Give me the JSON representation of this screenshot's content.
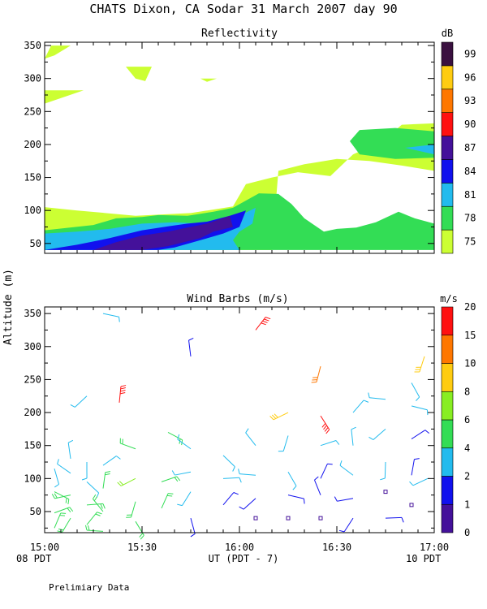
{
  "title": "CHATS Dixon, CA   Sodar  31 March 2007  day  90",
  "footer": "Prelimiary Data",
  "shared_axes": {
    "ylabel": "Altitude (m)",
    "xlabel": "UT  (PDT - 7)",
    "x_ticks": [
      "15:00",
      "15:30",
      "16:00",
      "16:30",
      "17:00"
    ],
    "x_left_note": "08 PDT",
    "x_right_note": "10 PDT"
  },
  "chart_data": [
    {
      "type": "heatmap",
      "title": "Reflectivity",
      "xlim": [
        0,
        120
      ],
      "ylim": [
        35,
        355
      ],
      "y_ticks": [
        50,
        100,
        150,
        200,
        250,
        300,
        350
      ],
      "colorbar": {
        "unit": "dB",
        "ticks": [
          "75",
          "78",
          "81",
          "84",
          "87",
          "90",
          "93",
          "96",
          "99"
        ],
        "colors": [
          "#ccff33",
          "#33dd55",
          "#22bbee",
          "#1111ee",
          "#44119a",
          "#ff1111",
          "#ff7700",
          "#ffcc11",
          "#3a1040"
        ]
      },
      "regions": [
        {
          "level": "75",
          "color": "#ccff33",
          "points": [
            [
              0,
              40
            ],
            [
              0,
              105
            ],
            [
              10,
              100
            ],
            [
              28,
              92
            ],
            [
              45,
              96
            ],
            [
              58,
              106
            ],
            [
              62,
              140
            ],
            [
              70,
              150
            ],
            [
              78,
              158
            ],
            [
              88,
              152
            ],
            [
              95,
              185
            ],
            [
              104,
              205
            ],
            [
              110,
              230
            ],
            [
              120,
              232
            ],
            [
              120,
              160
            ],
            [
              110,
              168
            ],
            [
              100,
              175
            ],
            [
              90,
              178
            ],
            [
              80,
              170
            ],
            [
              72,
              160
            ],
            [
              70,
              40
            ]
          ]
        },
        {
          "level": "75",
          "color": "#ccff33",
          "points": [
            [
              0,
              262
            ],
            [
              0,
              282
            ],
            [
              12,
              282
            ]
          ]
        },
        {
          "level": "75",
          "color": "#ccff33",
          "points": [
            [
              0,
              330
            ],
            [
              2,
              350
            ],
            [
              8,
              350
            ],
            [
              3,
              335
            ]
          ]
        },
        {
          "level": "75",
          "color": "#ccff33",
          "points": [
            [
              25,
              318
            ],
            [
              28,
              300
            ],
            [
              31,
              296
            ],
            [
              33,
              318
            ]
          ]
        },
        {
          "level": "75",
          "color": "#ccff33",
          "points": [
            [
              48,
              300
            ],
            [
              50,
              295
            ],
            [
              53,
              300
            ]
          ]
        },
        {
          "level": "78",
          "color": "#33dd55",
          "points": [
            [
              0,
              40
            ],
            [
              0,
              70
            ],
            [
              15,
              78
            ],
            [
              22,
              88
            ],
            [
              30,
              90
            ],
            [
              35,
              93
            ],
            [
              44,
              92
            ],
            [
              52,
              98
            ],
            [
              58,
              104
            ],
            [
              66,
              126
            ],
            [
              72,
              125
            ],
            [
              76,
              110
            ],
            [
              80,
              88
            ],
            [
              86,
              68
            ],
            [
              90,
              72
            ],
            [
              96,
              74
            ],
            [
              102,
              82
            ],
            [
              109,
              98
            ],
            [
              114,
              88
            ],
            [
              120,
              80
            ],
            [
              120,
              40
            ]
          ]
        },
        {
          "level": "78",
          "color": "#33dd55",
          "points": [
            [
              97,
              222
            ],
            [
              108,
              225
            ],
            [
              120,
              220
            ],
            [
              120,
              180
            ],
            [
              108,
              178
            ],
            [
              97,
              185
            ],
            [
              94,
              205
            ]
          ]
        },
        {
          "level": "81",
          "color": "#22bbee",
          "points": [
            [
              0,
              40
            ],
            [
              0,
              65
            ],
            [
              10,
              68
            ],
            [
              20,
              72
            ],
            [
              30,
              80
            ],
            [
              40,
              82
            ],
            [
              48,
              80
            ],
            [
              56,
              85
            ],
            [
              60,
              92
            ],
            [
              65,
              104
            ],
            [
              64,
              80
            ],
            [
              60,
              68
            ],
            [
              58,
              55
            ],
            [
              60,
              40
            ]
          ]
        },
        {
          "level": "81",
          "color": "#22bbee",
          "points": [
            [
              120,
              200
            ],
            [
              111,
              195
            ],
            [
              120,
              185
            ]
          ]
        },
        {
          "level": "84",
          "color": "#1111ee",
          "points": [
            [
              0,
              40
            ],
            [
              10,
              48
            ],
            [
              20,
              58
            ],
            [
              30,
              70
            ],
            [
              38,
              76
            ],
            [
              44,
              80
            ],
            [
              50,
              83
            ],
            [
              57,
              92
            ],
            [
              62,
              100
            ],
            [
              60,
              75
            ],
            [
              55,
              65
            ],
            [
              48,
              55
            ],
            [
              40,
              44
            ],
            [
              35,
              40
            ]
          ]
        },
        {
          "level": "87",
          "color": "#44119a",
          "points": [
            [
              15,
              40
            ],
            [
              22,
              52
            ],
            [
              30,
              62
            ],
            [
              38,
              68
            ],
            [
              44,
              74
            ],
            [
              50,
              80
            ],
            [
              57,
              92
            ],
            [
              58,
              75
            ],
            [
              52,
              68
            ],
            [
              48,
              58
            ],
            [
              38,
              46
            ],
            [
              30,
              40
            ]
          ]
        }
      ]
    },
    {
      "type": "scatter",
      "title": "Wind Barbs (m/s)",
      "xlim": [
        0,
        120
      ],
      "ylim": [
        18,
        360
      ],
      "y_ticks": [
        50,
        100,
        150,
        200,
        250,
        300,
        350
      ],
      "colorbar": {
        "unit": "m/s",
        "ticks": [
          "0",
          "1",
          "2",
          "4",
          "6",
          "8",
          "10",
          "15",
          "20"
        ],
        "colors": [
          "#44119a",
          "#1111ee",
          "#22bbee",
          "#33dd55",
          "#88ee22",
          "#ffcc11",
          "#ff7700",
          "#ff1111"
        ]
      },
      "barbs": [
        {
          "t": 3,
          "alt": 25,
          "speed": 4,
          "color": "#33dd55"
        },
        {
          "t": 3,
          "alt": 48,
          "speed": 4,
          "color": "#33dd55"
        },
        {
          "t": 3,
          "alt": 80,
          "speed": 4,
          "color": "#33dd55"
        },
        {
          "t": 3,
          "alt": 115,
          "speed": 3,
          "color": "#22bbee"
        },
        {
          "t": 8,
          "alt": 40,
          "speed": 4,
          "color": "#33dd55"
        },
        {
          "t": 8,
          "alt": 75,
          "speed": 5,
          "color": "#33dd55"
        },
        {
          "t": 8,
          "alt": 108,
          "speed": 3,
          "color": "#22bbee"
        },
        {
          "t": 8,
          "alt": 130,
          "speed": 3,
          "color": "#22bbee"
        },
        {
          "t": 13,
          "alt": 30,
          "speed": 4,
          "color": "#33dd55"
        },
        {
          "t": 13,
          "alt": 60,
          "speed": 4,
          "color": "#33dd55"
        },
        {
          "t": 13,
          "alt": 95,
          "speed": 3,
          "color": "#22bbee"
        },
        {
          "t": 13,
          "alt": 125,
          "speed": 3,
          "color": "#22bbee"
        },
        {
          "t": 13,
          "alt": 225,
          "speed": 3,
          "color": "#22bbee"
        },
        {
          "t": 18,
          "alt": 20,
          "speed": 4,
          "color": "#33dd55"
        },
        {
          "t": 18,
          "alt": 50,
          "speed": 5,
          "color": "#33dd55"
        },
        {
          "t": 18,
          "alt": 85,
          "speed": 4,
          "color": "#33dd55"
        },
        {
          "t": 18,
          "alt": 120,
          "speed": 3,
          "color": "#22bbee"
        },
        {
          "t": 18,
          "alt": 350,
          "speed": 3,
          "color": "#22bbee"
        },
        {
          "t": 28,
          "alt": 35,
          "speed": 5,
          "color": "#33dd55"
        },
        {
          "t": 28,
          "alt": 65,
          "speed": 5,
          "color": "#33dd55"
        },
        {
          "t": 28,
          "alt": 100,
          "speed": 6,
          "color": "#88ee22"
        },
        {
          "t": 28,
          "alt": 145,
          "speed": 4,
          "color": "#33dd55"
        },
        {
          "t": 23,
          "alt": 215,
          "speed": 20,
          "color": "#ff1111"
        },
        {
          "t": 36,
          "alt": 55,
          "speed": 4,
          "color": "#33dd55"
        },
        {
          "t": 36,
          "alt": 95,
          "speed": 4,
          "color": "#33dd55"
        },
        {
          "t": 38,
          "alt": 170,
          "speed": 5,
          "color": "#33dd55"
        },
        {
          "t": 45,
          "alt": 40,
          "speed": 1,
          "color": "#1111ee"
        },
        {
          "t": 45,
          "alt": 80,
          "speed": 2,
          "color": "#22bbee"
        },
        {
          "t": 45,
          "alt": 110,
          "speed": 2,
          "color": "#22bbee"
        },
        {
          "t": 45,
          "alt": 145,
          "speed": 3,
          "color": "#22bbee"
        },
        {
          "t": 45,
          "alt": 285,
          "speed": 1,
          "color": "#1111ee"
        },
        {
          "t": 55,
          "alt": 60,
          "speed": 1,
          "color": "#1111ee"
        },
        {
          "t": 55,
          "alt": 100,
          "speed": 3,
          "color": "#22bbee"
        },
        {
          "t": 55,
          "alt": 135,
          "speed": 3,
          "color": "#22bbee"
        },
        {
          "t": 65,
          "alt": 40,
          "speed": 0,
          "color": "#44119a"
        },
        {
          "t": 65,
          "alt": 70,
          "speed": 1,
          "color": "#1111ee"
        },
        {
          "t": 65,
          "alt": 105,
          "speed": 3,
          "color": "#22bbee"
        },
        {
          "t": 65,
          "alt": 150,
          "speed": 3,
          "color": "#22bbee"
        },
        {
          "t": 65,
          "alt": 325,
          "speed": 20,
          "color": "#ff1111"
        },
        {
          "t": 75,
          "alt": 40,
          "speed": 0,
          "color": "#44119a"
        },
        {
          "t": 75,
          "alt": 75,
          "speed": 1,
          "color": "#1111ee"
        },
        {
          "t": 75,
          "alt": 110,
          "speed": 3,
          "color": "#22bbee"
        },
        {
          "t": 75,
          "alt": 165,
          "speed": 3,
          "color": "#22bbee"
        },
        {
          "t": 75,
          "alt": 200,
          "speed": 8,
          "color": "#ffcc11"
        },
        {
          "t": 85,
          "alt": 40,
          "speed": 0,
          "color": "#44119a"
        },
        {
          "t": 85,
          "alt": 75,
          "speed": 1,
          "color": "#1111ee"
        },
        {
          "t": 85,
          "alt": 100,
          "speed": 1,
          "color": "#1111ee"
        },
        {
          "t": 85,
          "alt": 150,
          "speed": 3,
          "color": "#22bbee"
        },
        {
          "t": 85,
          "alt": 195,
          "speed": 20,
          "color": "#ff1111"
        },
        {
          "t": 85,
          "alt": 270,
          "speed": 10,
          "color": "#ff7700"
        },
        {
          "t": 95,
          "alt": 40,
          "speed": 1,
          "color": "#1111ee"
        },
        {
          "t": 95,
          "alt": 70,
          "speed": 1,
          "color": "#1111ee"
        },
        {
          "t": 95,
          "alt": 105,
          "speed": 3,
          "color": "#22bbee"
        },
        {
          "t": 95,
          "alt": 150,
          "speed": 3,
          "color": "#22bbee"
        },
        {
          "t": 95,
          "alt": 200,
          "speed": 3,
          "color": "#22bbee"
        },
        {
          "t": 105,
          "alt": 40,
          "speed": 1,
          "color": "#1111ee"
        },
        {
          "t": 105,
          "alt": 80,
          "speed": 0,
          "color": "#44119a"
        },
        {
          "t": 105,
          "alt": 125,
          "speed": 3,
          "color": "#22bbee"
        },
        {
          "t": 105,
          "alt": 175,
          "speed": 3,
          "color": "#22bbee"
        },
        {
          "t": 105,
          "alt": 220,
          "speed": 3,
          "color": "#22bbee"
        },
        {
          "t": 113,
          "alt": 60,
          "speed": 0,
          "color": "#44119a"
        },
        {
          "t": 113,
          "alt": 105,
          "speed": 1,
          "color": "#1111ee"
        },
        {
          "t": 113,
          "alt": 160,
          "speed": 1,
          "color": "#1111ee"
        },
        {
          "t": 113,
          "alt": 210,
          "speed": 3,
          "color": "#22bbee"
        },
        {
          "t": 113,
          "alt": 245,
          "speed": 3,
          "color": "#22bbee"
        },
        {
          "t": 117,
          "alt": 285,
          "speed": 8,
          "color": "#ffcc11"
        },
        {
          "t": 118,
          "alt": 100,
          "speed": 3,
          "color": "#22bbee"
        }
      ]
    }
  ]
}
